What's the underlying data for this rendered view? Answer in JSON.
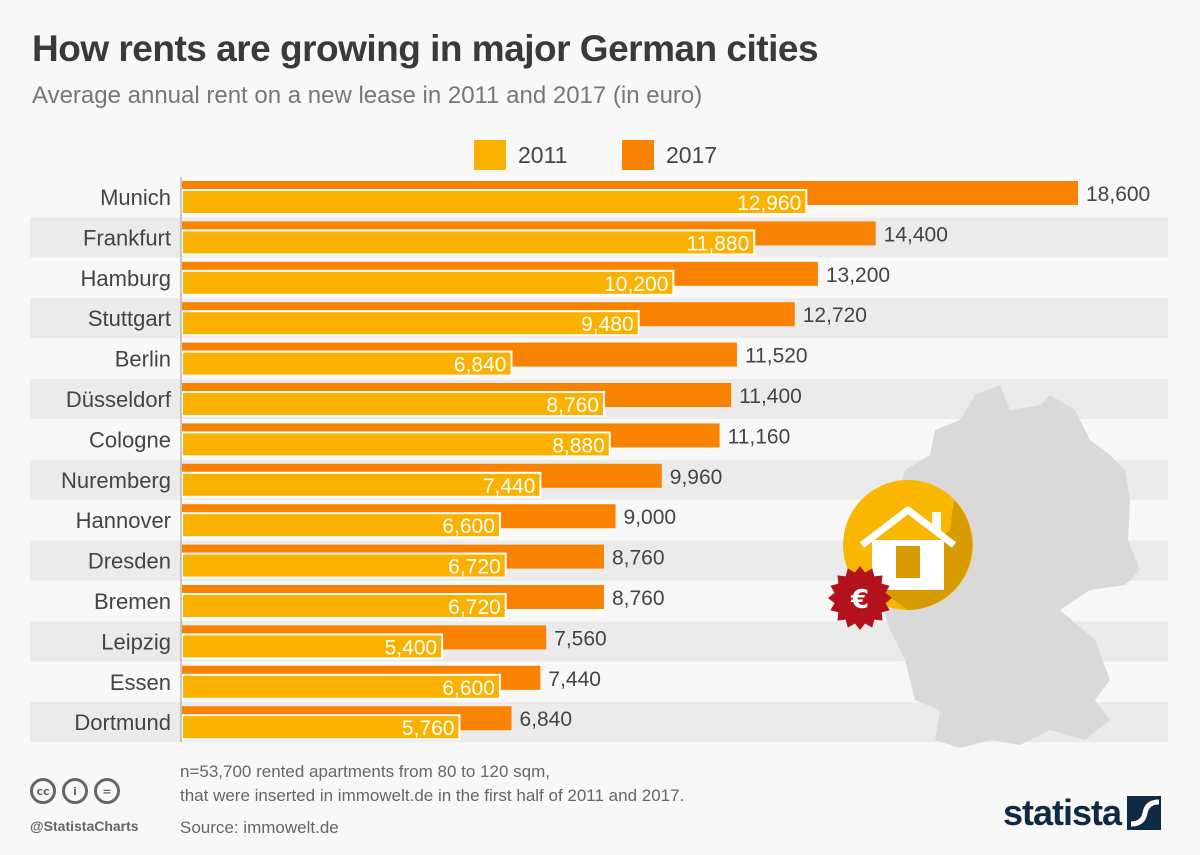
{
  "chart_data": {
    "type": "bar",
    "orientation": "horizontal",
    "title": "How rents are growing in major German cities",
    "subtitle": "Average annual rent on a new lease in 2011 and 2017 (in euro)",
    "categories": [
      "Munich",
      "Frankfurt",
      "Hamburg",
      "Stuttgart",
      "Berlin",
      "Düsseldorf",
      "Cologne",
      "Nuremberg",
      "Hannover",
      "Dresden",
      "Bremen",
      "Leipzig",
      "Essen",
      "Dortmund"
    ],
    "series": [
      {
        "name": "2011",
        "color": "#fbb100",
        "values": [
          12960,
          11880,
          10200,
          9480,
          6840,
          8760,
          8880,
          7440,
          6600,
          6720,
          6720,
          5400,
          6600,
          5760
        ],
        "labels": [
          "12,960",
          "11,880",
          "10,200",
          "9,480",
          "6,840",
          "8,760",
          "8,880",
          "7,440",
          "6,600",
          "6,720",
          "6,720",
          "5,400",
          "6,600",
          "5,760"
        ]
      },
      {
        "name": "2017",
        "color": "#f98300",
        "values": [
          18600,
          14400,
          13200,
          12720,
          11520,
          11400,
          11160,
          9960,
          9000,
          8760,
          8760,
          7560,
          7440,
          6840
        ],
        "labels": [
          "18,600",
          "14,400",
          "13,200",
          "12,720",
          "11,520",
          "11,400",
          "11,160",
          "9,960",
          "9,000",
          "8,760",
          "8,760",
          "7,560",
          "7,440",
          "6,840"
        ]
      }
    ],
    "xlim": [
      0,
      18600
    ],
    "legend": "top-center"
  },
  "footer": {
    "note_line1": "n=53,700 rented apartments from 80 to 120 sqm,",
    "note_line2": "that were inserted in immowelt.de in the first half of 2011 and 2017.",
    "source": "Source: immowelt.de",
    "handle": "@StatistaCharts",
    "logo": "statista",
    "cc": [
      "cc",
      "i",
      "="
    ]
  },
  "colors": {
    "band": "#ebebeb",
    "map": "#d9d9d9",
    "euro_badge": "#b3121c",
    "house_circle": "#f9b700"
  }
}
